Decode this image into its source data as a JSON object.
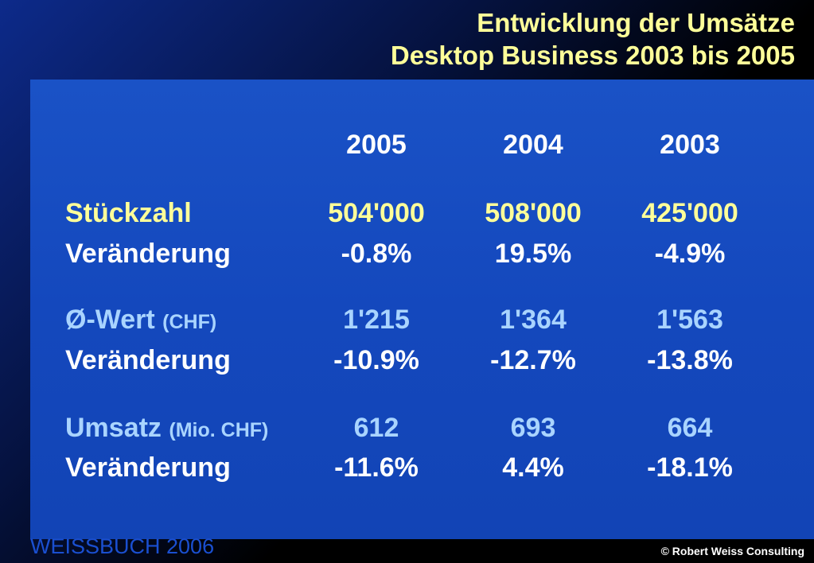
{
  "title": {
    "line1": "Entwicklung der Umsätze",
    "line2": "Desktop Business 2003 bis 2005"
  },
  "table": {
    "years": [
      "2005",
      "2004",
      "2003"
    ],
    "rows": [
      {
        "label": "Stückzahl",
        "unit": "",
        "values": [
          "504'000",
          "508'000",
          "425'000"
        ]
      },
      {
        "label": "Veränderung",
        "unit": "",
        "values": [
          "-0.8%",
          "19.5%",
          "-4.9%"
        ]
      },
      {
        "label": "Ø-Wert",
        "unit": "(CHF)",
        "values": [
          "1'215",
          "1'364",
          "1'563"
        ]
      },
      {
        "label": "Veränderung",
        "unit": "",
        "values": [
          "-10.9%",
          "-12.7%",
          "-13.8%"
        ]
      },
      {
        "label": "Umsatz",
        "unit": "(Mio. CHF)",
        "values": [
          "612",
          "693",
          "664"
        ]
      },
      {
        "label": "Veränderung",
        "unit": "",
        "values": [
          "-11.6%",
          "4.4%",
          "-18.1%"
        ]
      }
    ]
  },
  "footer": {
    "left": "WEISSBUCH  2006",
    "right": "© Robert Weiss Consulting"
  },
  "colors": {
    "title": "#ffff99",
    "panel": "#1448bd",
    "highlight_yellow": "#ffff99",
    "highlight_blue": "#a9d4ff"
  }
}
